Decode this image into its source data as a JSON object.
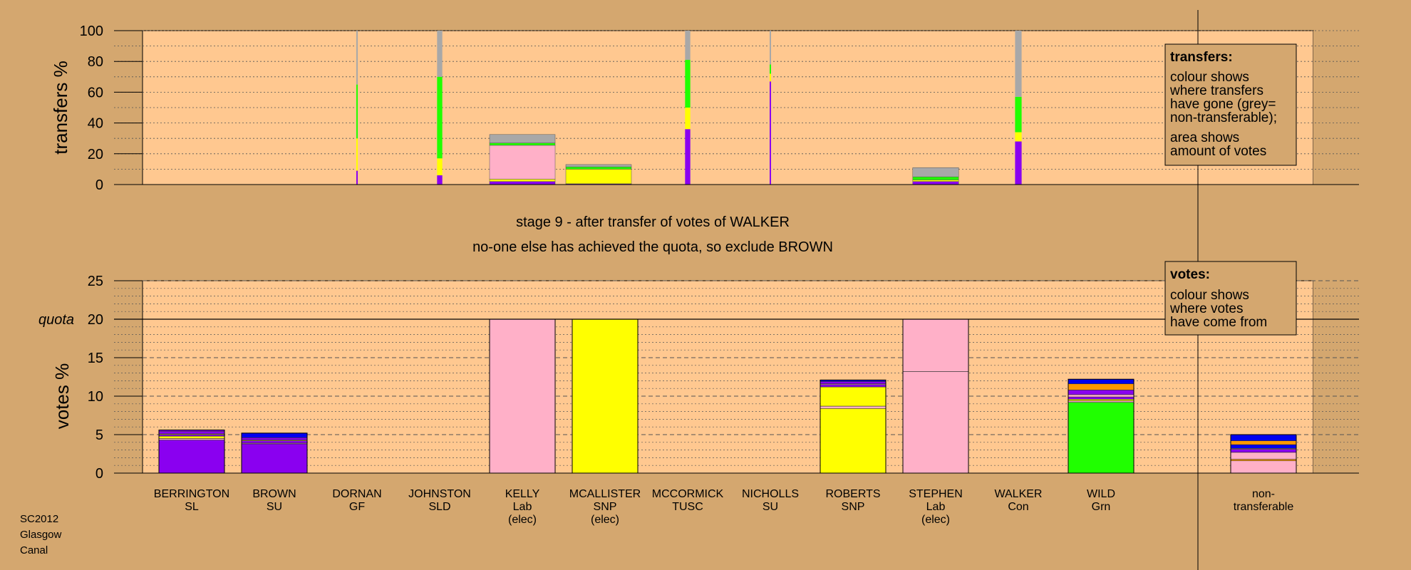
{
  "footer": [
    "SC2012",
    "Glasgow",
    "Canal"
  ],
  "messages": {
    "line1": "stage 9 - after transfer of votes of WALKER",
    "line2": "no-one else has achieved the quota, so exclude BROWN"
  },
  "colors": {
    "purple": "#8a00f0",
    "pink": "#ffb0c8",
    "yellow": "#ffff00",
    "green": "#20ff00",
    "grey": "#a8a8a8",
    "orange": "#ff9800",
    "blue": "#0000f0",
    "red": "#e00000"
  },
  "legend_transfers": {
    "title": "transfers:",
    "lines1": [
      "colour shows",
      "where transfers",
      "have gone (grey=",
      "non-transferable);"
    ],
    "lines2": [
      "area shows",
      "amount of votes"
    ]
  },
  "legend_votes": {
    "title": "votes:",
    "lines": [
      "colour shows",
      "where votes",
      "have come from"
    ]
  },
  "chart_data": [
    {
      "type": "bar",
      "id": "transfers",
      "ylabel": "transfers %",
      "ylim": [
        0,
        100
      ],
      "yticks": [
        0,
        20,
        40,
        60,
        80,
        100
      ],
      "categories": [
        "BERRINGTON SL",
        "BROWN SU",
        "DORNAN GF",
        "JOHNSTON SLD",
        "KELLY Lab (elec)",
        "MCALLISTER SNP (elec)",
        "MCCORMICK TUSC",
        "NICHOLLS SU",
        "ROBERTS SNP",
        "STEPHEN Lab (elec)",
        "WALKER Con",
        "WILD Grn"
      ],
      "bars": [
        {
          "candidate": "DORNAN",
          "width": 0.02,
          "segments": [
            {
              "color": "purple",
              "value": 9
            },
            {
              "color": "yellow",
              "value": 21
            },
            {
              "color": "green",
              "value": 35
            },
            {
              "color": "grey",
              "value": 35
            }
          ]
        },
        {
          "candidate": "JOHNSTON",
          "width": 0.08,
          "segments": [
            {
              "color": "purple",
              "value": 6
            },
            {
              "color": "yellow",
              "value": 11
            },
            {
              "color": "green",
              "value": 53
            },
            {
              "color": "grey",
              "value": 30
            }
          ]
        },
        {
          "candidate": "KELLY",
          "width": 1.0,
          "segments": [
            {
              "color": "purple",
              "value": 2
            },
            {
              "color": "yellow",
              "value": 1.5
            },
            {
              "color": "pink",
              "value": 22
            },
            {
              "color": "green",
              "value": 1.5
            },
            {
              "color": "grey",
              "value": 5.5
            }
          ]
        },
        {
          "candidate": "MCALLISTER",
          "width": 1.0,
          "segments": [
            {
              "color": "purple",
              "value": 0.5
            },
            {
              "color": "yellow",
              "value": 9.5
            },
            {
              "color": "green",
              "value": 1.5
            },
            {
              "color": "grey",
              "value": 1.5
            }
          ]
        },
        {
          "candidate": "MCCORMICK",
          "width": 0.08,
          "segments": [
            {
              "color": "purple",
              "value": 36
            },
            {
              "color": "yellow",
              "value": 14
            },
            {
              "color": "green",
              "value": 31
            },
            {
              "color": "grey",
              "value": 19
            }
          ]
        },
        {
          "candidate": "NICHOLLS",
          "width": 0.02,
          "segments": [
            {
              "color": "purple",
              "value": 67
            },
            {
              "color": "yellow",
              "value": 5
            },
            {
              "color": "green",
              "value": 6
            },
            {
              "color": "grey",
              "value": 22
            }
          ]
        },
        {
          "candidate": "STEPHEN",
          "width": 0.7,
          "segments": [
            {
              "color": "purple",
              "value": 2
            },
            {
              "color": "yellow",
              "value": 1
            },
            {
              "color": "green",
              "value": 2
            },
            {
              "color": "grey",
              "value": 6
            }
          ]
        },
        {
          "candidate": "WALKER",
          "width": 0.1,
          "segments": [
            {
              "color": "purple",
              "value": 28
            },
            {
              "color": "yellow",
              "value": 6
            },
            {
              "color": "green",
              "value": 23
            },
            {
              "color": "grey",
              "value": 43
            }
          ]
        }
      ]
    },
    {
      "type": "bar",
      "id": "votes",
      "ylabel": "votes %",
      "ylim": [
        0,
        25
      ],
      "yticks": [
        0,
        5,
        10,
        15,
        20,
        25
      ],
      "quota": 20,
      "quota_label": "quota",
      "categories": [
        "BERRINGTON SL",
        "BROWN SU",
        "DORNAN GF",
        "JOHNSTON SLD",
        "KELLY Lab (elec)",
        "MCALLISTER SNP (elec)",
        "MCCORMICK TUSC",
        "NICHOLLS SU",
        "ROBERTS SNP",
        "STEPHEN Lab (elec)",
        "WALKER Con",
        "WILD Grn",
        "non- transferable"
      ],
      "bars": [
        {
          "candidate": "BERRINGTON",
          "segments": [
            {
              "color": "purple",
              "value": 4.3
            },
            {
              "color": "pink",
              "value": 0.2
            },
            {
              "color": "yellow",
              "value": 0.3
            },
            {
              "color": "purple",
              "value": 0.2
            },
            {
              "color": "yellow",
              "value": 0.1
            },
            {
              "color": "purple",
              "value": 0.3
            },
            {
              "color": "purple",
              "value": 0.2
            }
          ]
        },
        {
          "candidate": "BROWN",
          "segments": [
            {
              "color": "purple",
              "value": 3.8
            },
            {
              "color": "pink",
              "value": 0.1
            },
            {
              "color": "purple",
              "value": 0.3
            },
            {
              "color": "yellow",
              "value": 0.1
            },
            {
              "color": "purple",
              "value": 0.3
            },
            {
              "color": "blue",
              "value": 0.6
            }
          ]
        },
        {
          "candidate": "DORNAN",
          "segments": []
        },
        {
          "candidate": "JOHNSTON",
          "segments": []
        },
        {
          "candidate": "KELLY",
          "segments": [
            {
              "color": "pink",
              "value": 20.0
            }
          ]
        },
        {
          "candidate": "MCALLISTER",
          "segments": [
            {
              "color": "yellow",
              "value": 20.0
            }
          ]
        },
        {
          "candidate": "MCCORMICK",
          "segments": []
        },
        {
          "candidate": "NICHOLLS",
          "segments": []
        },
        {
          "candidate": "ROBERTS",
          "segments": [
            {
              "color": "yellow",
              "value": 8.4
            },
            {
              "color": "pink",
              "value": 0.3
            },
            {
              "color": "yellow",
              "value": 2.5
            },
            {
              "color": "purple",
              "value": 0.3
            },
            {
              "color": "pink",
              "value": 0.1
            },
            {
              "color": "purple",
              "value": 0.3
            },
            {
              "color": "blue",
              "value": 0.2
            }
          ]
        },
        {
          "candidate": "STEPHEN",
          "segments": [
            {
              "color": "pink",
              "value": 13.2
            },
            {
              "color": "pink",
              "value": 6.8
            }
          ]
        },
        {
          "candidate": "WALKER",
          "segments": []
        },
        {
          "candidate": "WILD",
          "segments": [
            {
              "color": "green",
              "value": 9.2
            },
            {
              "color": "pink",
              "value": 0.2
            },
            {
              "color": "yellow",
              "value": 0.2
            },
            {
              "color": "purple",
              "value": 0.3
            },
            {
              "color": "pink",
              "value": 0.3
            },
            {
              "color": "purple",
              "value": 0.6
            },
            {
              "color": "orange",
              "value": 0.8
            },
            {
              "color": "blue",
              "value": 0.6
            }
          ]
        },
        {
          "candidate": "non-transferable",
          "segments": [
            {
              "color": "pink",
              "value": 1.6
            },
            {
              "color": "orange",
              "value": 0.2
            },
            {
              "color": "pink",
              "value": 0.9
            },
            {
              "color": "purple",
              "value": 0.4
            },
            {
              "color": "pink",
              "value": 0.1
            },
            {
              "color": "blue",
              "value": 0.5
            },
            {
              "color": "orange",
              "value": 0.5
            },
            {
              "color": "blue",
              "value": 0.8
            }
          ]
        }
      ]
    }
  ]
}
